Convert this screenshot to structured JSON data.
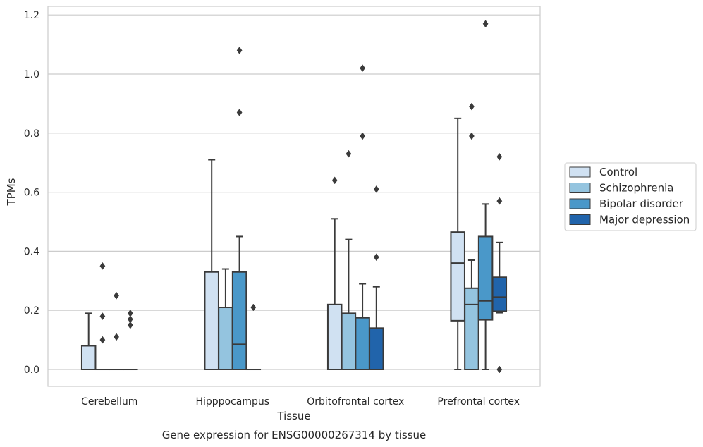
{
  "chart_data": {
    "type": "boxplot",
    "xlabel": "Tissue",
    "ylabel": "TPMs",
    "caption": "Gene expression for ENSG00000267314 by tissue",
    "ylim": [
      -0.058,
      1.23
    ],
    "yticks": [
      "0.0",
      "0.2",
      "0.4",
      "0.6",
      "0.8",
      "1.0",
      "1.2"
    ],
    "grid": true,
    "legend_position": "right-center",
    "categories": [
      "Cerebellum",
      "Hipppocampus",
      "Orbitofrontal cortex",
      "Prefrontal cortex"
    ],
    "series": [
      {
        "name": "Control",
        "color": "#d0e1f2",
        "boxes": [
          {
            "q1": 0.0,
            "median": 0.0,
            "q3": 0.08,
            "whislo": 0.0,
            "whishi": 0.19,
            "fliers": []
          },
          {
            "q1": 0.0,
            "median": 0.0,
            "q3": 0.33,
            "whislo": 0.0,
            "whishi": 0.71,
            "fliers": []
          },
          {
            "q1": 0.0,
            "median": 0.0,
            "q3": 0.22,
            "whislo": 0.0,
            "whishi": 0.51,
            "fliers": [
              0.64
            ]
          },
          {
            "q1": 0.165,
            "median": 0.36,
            "q3": 0.465,
            "whislo": 0.0,
            "whishi": 0.85,
            "fliers": []
          }
        ]
      },
      {
        "name": "Schizophrenia",
        "color": "#94c4df",
        "boxes": [
          {
            "q1": 0.0,
            "median": 0.0,
            "q3": 0.0,
            "whislo": 0.0,
            "whishi": 0.0,
            "fliers": [
              0.35,
              0.18,
              0.1
            ]
          },
          {
            "q1": 0.0,
            "median": 0.0,
            "q3": 0.21,
            "whislo": 0.0,
            "whishi": 0.34,
            "fliers": []
          },
          {
            "q1": 0.0,
            "median": 0.0,
            "q3": 0.19,
            "whislo": 0.0,
            "whishi": 0.44,
            "fliers": [
              0.73
            ]
          },
          {
            "q1": 0.0,
            "median": 0.22,
            "q3": 0.275,
            "whislo": 0.0,
            "whishi": 0.37,
            "fliers": [
              0.89,
              0.79
            ]
          }
        ]
      },
      {
        "name": "Bipolar disorder",
        "color": "#4a98c9",
        "boxes": [
          {
            "q1": 0.0,
            "median": 0.0,
            "q3": 0.0,
            "whislo": 0.0,
            "whishi": 0.0,
            "fliers": [
              0.25,
              0.11
            ]
          },
          {
            "q1": 0.0,
            "median": 0.085,
            "q3": 0.33,
            "whislo": 0.0,
            "whishi": 0.45,
            "fliers": [
              1.08,
              0.87
            ]
          },
          {
            "q1": 0.0,
            "median": 0.0,
            "q3": 0.175,
            "whislo": 0.0,
            "whishi": 0.29,
            "fliers": [
              1.02,
              0.79
            ]
          },
          {
            "q1": 0.168,
            "median": 0.232,
            "q3": 0.45,
            "whislo": 0.0,
            "whishi": 0.56,
            "fliers": [
              1.17
            ]
          }
        ]
      },
      {
        "name": "Major depression",
        "color": "#2164ab",
        "boxes": [
          {
            "q1": 0.0,
            "median": 0.0,
            "q3": 0.0,
            "whislo": 0.0,
            "whishi": 0.0,
            "fliers": [
              0.19,
              0.17,
              0.15
            ]
          },
          {
            "q1": 0.0,
            "median": 0.0,
            "q3": 0.0,
            "whislo": 0.0,
            "whishi": 0.0,
            "fliers": [
              0.21
            ]
          },
          {
            "q1": 0.0,
            "median": 0.0,
            "q3": 0.14,
            "whislo": 0.0,
            "whishi": 0.28,
            "fliers": [
              0.61,
              0.38
            ]
          },
          {
            "q1": 0.197,
            "median": 0.245,
            "q3": 0.312,
            "whislo": 0.192,
            "whishi": 0.43,
            "fliers": [
              0.72,
              0.57,
              0.0
            ]
          }
        ]
      }
    ]
  },
  "colors": {
    "grid": "#cccccc",
    "frame": "#cccccc",
    "edge": "#3a3a3a",
    "text": "#262626"
  }
}
